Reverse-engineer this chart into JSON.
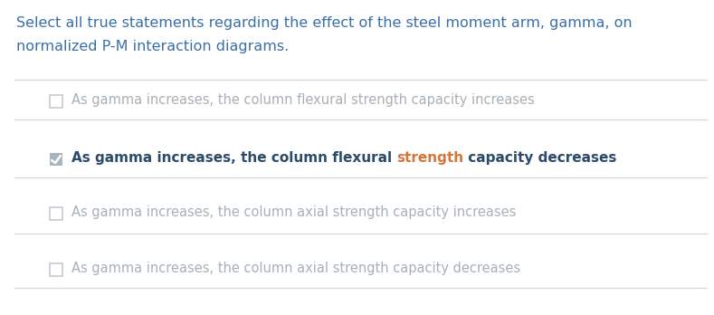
{
  "bg_color": "#ffffff",
  "title_line1": "Select all true statements regarding the effect of the steel moment arm, gamma, on",
  "title_line2": "normalized P-M interaction diagrams.",
  "title_color": "#3a6fa8",
  "options": [
    {
      "text": "As gamma increases, the column flexural strength capacity increases",
      "checked": false,
      "color": "#a8b0b8"
    },
    {
      "text_parts": [
        {
          "text": "As gamma increases, the column flexural ",
          "color": "#2c4a6a"
        },
        {
          "text": "strength",
          "color": "#d4763a"
        },
        {
          "text": " capacity decreases",
          "color": "#2c4a6a"
        }
      ],
      "checked": true,
      "color": "#2c4a6a"
    },
    {
      "text": "As gamma increases, the column axial strength capacity increases",
      "checked": false,
      "color": "#a8b0b8"
    },
    {
      "text": "As gamma increases, the column axial strength capacity decreases",
      "checked": false,
      "color": "#a8b0b8"
    }
  ],
  "separator_color": "#d4d8dc",
  "checkbox_unchecked_edge": "#c4ccd4",
  "checkbox_checked_fill": "#a8b4be",
  "figsize": [
    7.89,
    3.48
  ],
  "dpi": 100
}
